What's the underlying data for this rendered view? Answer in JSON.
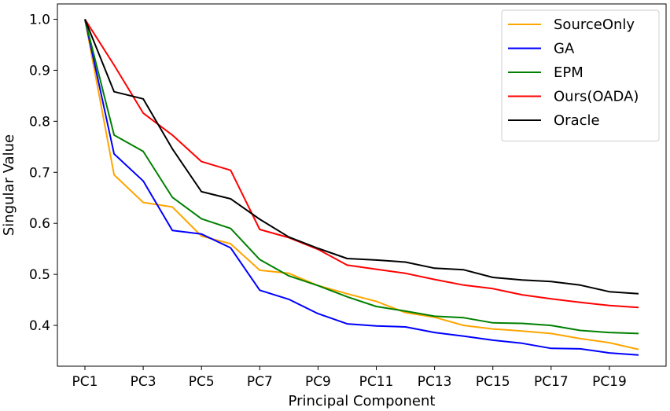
{
  "chart_data": {
    "type": "line",
    "title": "",
    "xlabel": "Principal Component",
    "ylabel": "Singular Value",
    "ylim": [
      0.32,
      1.03
    ],
    "yticks": [
      0.4,
      0.5,
      0.6,
      0.7,
      0.8,
      0.9,
      1.0
    ],
    "ytick_labels": [
      "0.4",
      "0.5",
      "0.6",
      "0.7",
      "0.8",
      "0.9",
      "1.0"
    ],
    "x": [
      "PC1",
      "PC2",
      "PC3",
      "PC4",
      "PC5",
      "PC6",
      "PC7",
      "PC8",
      "PC9",
      "PC10",
      "PC11",
      "PC12",
      "PC13",
      "PC14",
      "PC15",
      "PC16",
      "PC17",
      "PC18",
      "PC19",
      "PC20"
    ],
    "xtick_labels": [
      "PC1",
      "PC3",
      "PC5",
      "PC7",
      "PC9",
      "PC11",
      "PC13",
      "PC15",
      "PC17",
      "PC19"
    ],
    "legend_position": "top-right",
    "grid": false,
    "series": [
      {
        "name": "SourceOnly",
        "color": "#ffa500",
        "values": [
          1.0,
          0.695,
          0.641,
          0.632,
          0.575,
          0.56,
          0.508,
          0.502,
          0.478,
          0.462,
          0.447,
          0.425,
          0.416,
          0.4,
          0.393,
          0.389,
          0.384,
          0.374,
          0.366,
          0.353
        ]
      },
      {
        "name": "GA",
        "color": "#0000ff",
        "values": [
          1.0,
          0.736,
          0.683,
          0.586,
          0.579,
          0.552,
          0.469,
          0.451,
          0.423,
          0.403,
          0.399,
          0.397,
          0.386,
          0.379,
          0.371,
          0.365,
          0.355,
          0.354,
          0.346,
          0.342
        ]
      },
      {
        "name": "EPM",
        "color": "#008000",
        "values": [
          1.0,
          0.773,
          0.741,
          0.651,
          0.609,
          0.59,
          0.529,
          0.497,
          0.478,
          0.456,
          0.437,
          0.428,
          0.418,
          0.415,
          0.405,
          0.404,
          0.4,
          0.39,
          0.386,
          0.384
        ]
      },
      {
        "name": "Ours(OADA)",
        "color": "#ff0000",
        "values": [
          1.0,
          0.91,
          0.816,
          0.773,
          0.721,
          0.704,
          0.588,
          0.572,
          0.549,
          0.518,
          0.51,
          0.502,
          0.49,
          0.479,
          0.472,
          0.46,
          0.452,
          0.445,
          0.439,
          0.435
        ]
      },
      {
        "name": "Oracle",
        "color": "#000000",
        "values": [
          1.0,
          0.858,
          0.844,
          0.746,
          0.662,
          0.648,
          0.608,
          0.573,
          0.551,
          0.531,
          0.528,
          0.524,
          0.512,
          0.509,
          0.494,
          0.489,
          0.486,
          0.479,
          0.466,
          0.462
        ]
      }
    ]
  }
}
